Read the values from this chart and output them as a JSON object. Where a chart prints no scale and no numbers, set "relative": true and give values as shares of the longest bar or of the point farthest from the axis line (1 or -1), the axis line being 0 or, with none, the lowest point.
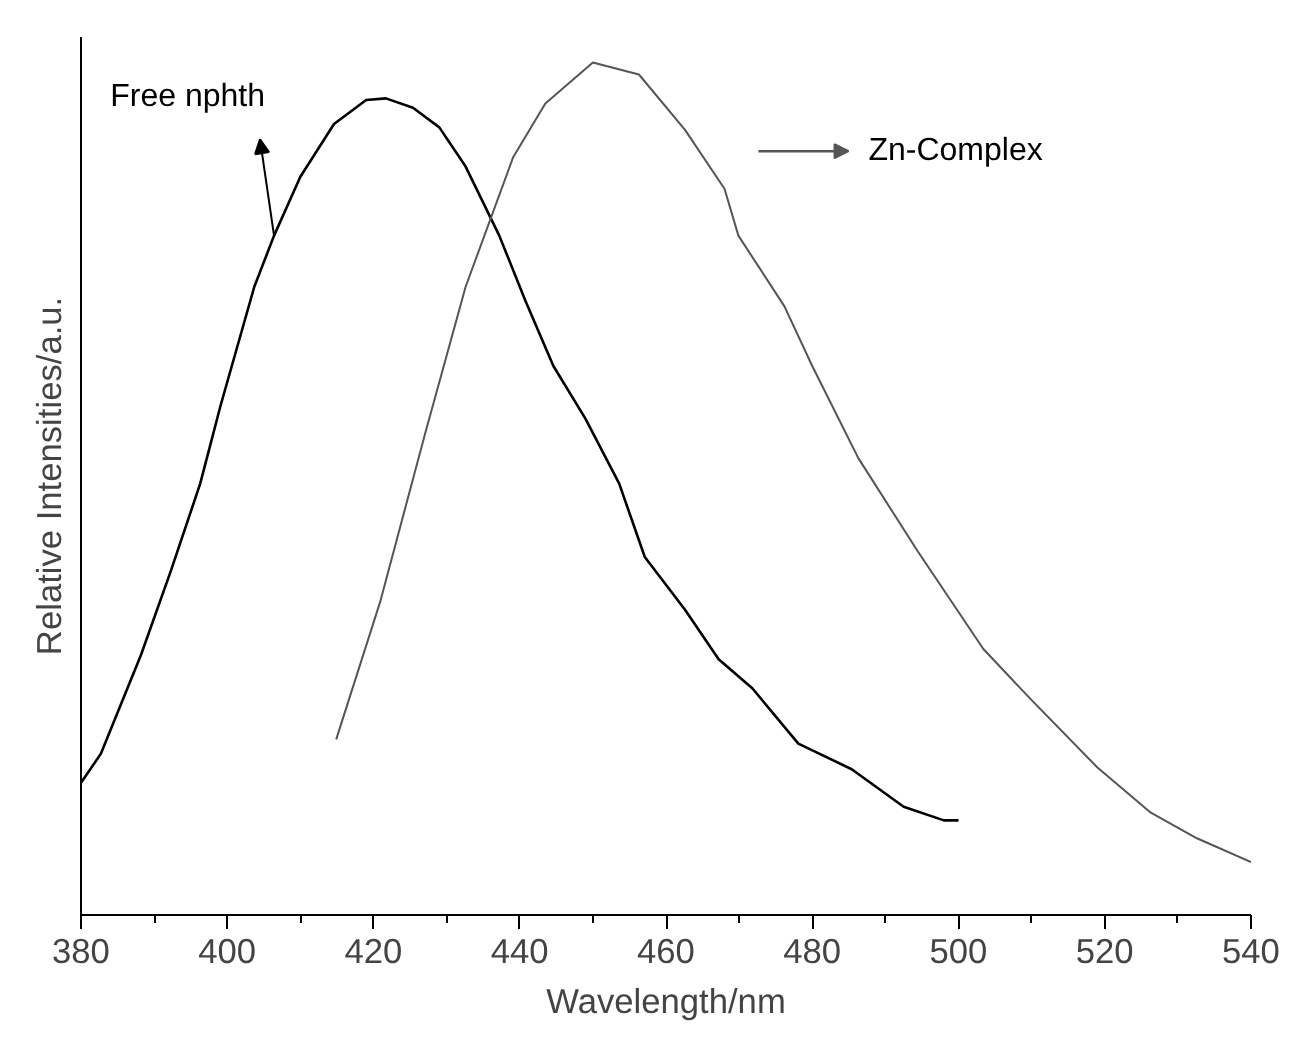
{
  "chart_data": {
    "type": "line",
    "xlabel": "Wavelength/nm",
    "ylabel": "Relative Intensities/a.u.",
    "relative": true,
    "xlim": [
      380,
      540
    ],
    "xticks": [
      380,
      400,
      420,
      440,
      460,
      480,
      500,
      520,
      540
    ],
    "grid": false,
    "legend": "top right",
    "marker": "none",
    "line_style": "solid",
    "series": [
      {
        "name": "Free nphth",
        "color": "#000000",
        "x": [
          380,
          382.7,
          388.2,
          392.3,
          396.3,
          399.1,
          403.7,
          406.4,
          410,
          414.6,
          419,
          421.7,
          425.4,
          429,
          432.6,
          437.2,
          440.8,
          444.6,
          449,
          453.6,
          457.1,
          462.6,
          467.2,
          471.8,
          478.1,
          485.4,
          492.5,
          498,
          500
        ],
        "values": [
          0.155,
          0.189,
          0.305,
          0.404,
          0.506,
          0.598,
          0.737,
          0.797,
          0.866,
          0.928,
          0.956,
          0.958,
          0.947,
          0.924,
          0.878,
          0.797,
          0.72,
          0.644,
          0.582,
          0.506,
          0.42,
          0.358,
          0.3,
          0.266,
          0.201,
          0.171,
          0.127,
          0.111,
          0.111
        ]
      },
      {
        "name": "Zn-Complex",
        "color": "#555555",
        "x": [
          414.9,
          420.9,
          427.1,
          432.6,
          439.1,
          443.5,
          450,
          456.3,
          462.6,
          468,
          469.9,
          476.2,
          480,
          486.3,
          494.4,
          503.4,
          510,
          519,
          526.3,
          532.6,
          540
        ],
        "values": [
          0.206,
          0.367,
          0.566,
          0.737,
          0.889,
          0.952,
          1.0,
          0.986,
          0.921,
          0.852,
          0.797,
          0.714,
          0.644,
          0.536,
          0.427,
          0.312,
          0.252,
          0.173,
          0.12,
          0.09,
          0.062
        ]
      }
    ]
  }
}
